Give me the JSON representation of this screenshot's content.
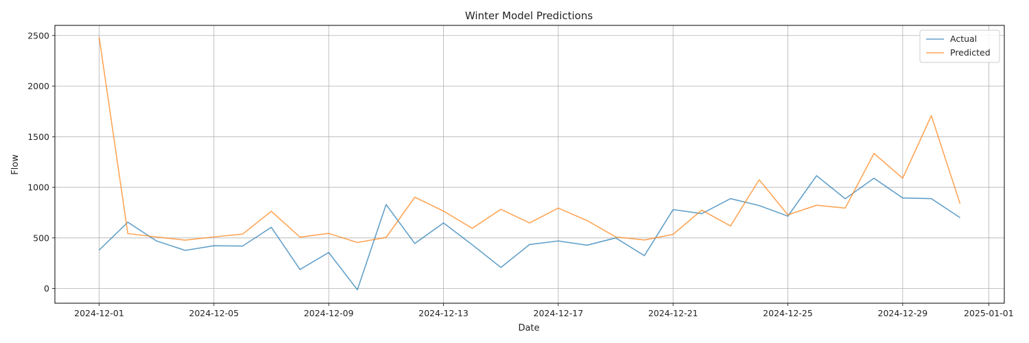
{
  "chart_data": {
    "type": "line",
    "title": "Winter Model Predictions",
    "xlabel": "Date",
    "ylabel": "Flow",
    "x": [
      "2024-12-01",
      "2024-12-02",
      "2024-12-03",
      "2024-12-04",
      "2024-12-05",
      "2024-12-06",
      "2024-12-07",
      "2024-12-08",
      "2024-12-09",
      "2024-12-10",
      "2024-12-11",
      "2024-12-12",
      "2024-12-13",
      "2024-12-14",
      "2024-12-15",
      "2024-12-16",
      "2024-12-17",
      "2024-12-18",
      "2024-12-19",
      "2024-12-20",
      "2024-12-21",
      "2024-12-22",
      "2024-12-23",
      "2024-12-24",
      "2024-12-25",
      "2024-12-26",
      "2024-12-27",
      "2024-12-28",
      "2024-12-29",
      "2024-12-30",
      "2024-12-31"
    ],
    "series": [
      {
        "name": "Actual",
        "color": "#1f77b4",
        "values": [
          380,
          655,
          470,
          377,
          423,
          420,
          605,
          188,
          356,
          -12,
          830,
          445,
          648,
          433,
          208,
          435,
          470,
          428,
          500,
          325,
          780,
          740,
          888,
          820,
          715,
          1115,
          887,
          1090,
          895,
          888,
          700
        ]
      },
      {
        "name": "Predicted",
        "color": "#ff7f0e",
        "values": [
          2485,
          543,
          510,
          478,
          510,
          538,
          763,
          508,
          545,
          455,
          505,
          902,
          765,
          595,
          783,
          648,
          795,
          672,
          510,
          480,
          535,
          775,
          618,
          1075,
          728,
          823,
          795,
          1335,
          1090,
          1708,
          838
        ]
      }
    ],
    "xticks": [
      "2024-12-01",
      "2024-12-05",
      "2024-12-09",
      "2024-12-13",
      "2024-12-17",
      "2024-12-21",
      "2024-12-25",
      "2024-12-29",
      "2025-01-01"
    ],
    "yticks": [
      0,
      500,
      1000,
      1500,
      2000,
      2500
    ],
    "xlim": [
      "2024-11-29T11:00",
      "2025-01-01T13:00"
    ],
    "ylim": [
      -145,
      2600
    ],
    "grid": true,
    "legend_position": "top-right"
  }
}
